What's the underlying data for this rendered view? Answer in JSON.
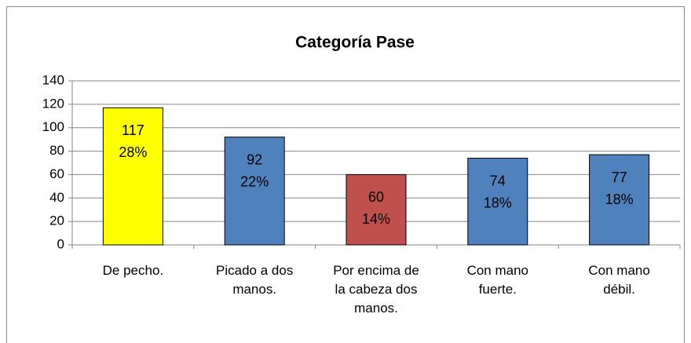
{
  "chart_data": {
    "type": "bar",
    "title": "Categoría Pase",
    "categories": [
      "De pecho.",
      "Picado a dos manos.",
      "Por encima de la cabeza dos manos.",
      "Con mano fuerte.",
      "Con mano débil."
    ],
    "values": [
      117,
      92,
      60,
      74,
      77
    ],
    "percentages": [
      28,
      22,
      14,
      18,
      18
    ],
    "percentage_labels": [
      "28%",
      "22%",
      "14%",
      "18%",
      "18%"
    ],
    "colors": [
      "#ffff00",
      "#4f81bd",
      "#c0504d",
      "#4f81bd",
      "#4f81bd"
    ],
    "ylim": [
      0,
      140
    ],
    "yticks": [
      0,
      20,
      40,
      60,
      80,
      100,
      120,
      140
    ],
    "grid": true
  }
}
